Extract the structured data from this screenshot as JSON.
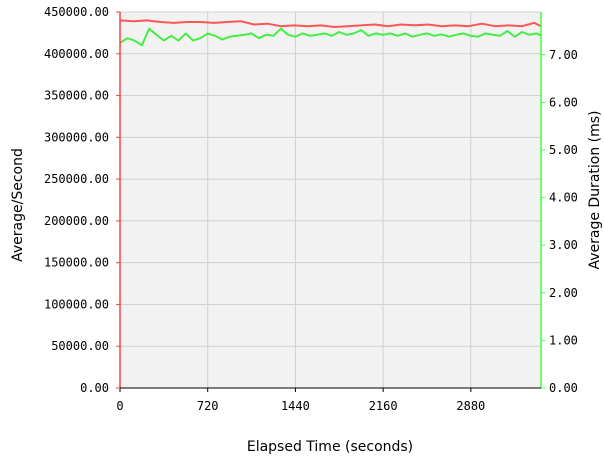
{
  "chart_data": {
    "type": "line",
    "xlabel": "Elapsed Time (seconds)",
    "ylabel_left": "Average/Second",
    "ylabel_right": "Average Duration (ms)",
    "xlim": [
      0,
      3456
    ],
    "ylim_left": [
      0,
      450000
    ],
    "ylim_right": [
      0,
      7.9
    ],
    "x_ticks": [
      0,
      720,
      1440,
      2160,
      2880
    ],
    "x_tick_labels": [
      "0",
      "720",
      "1440",
      "2160",
      "2880"
    ],
    "y_left_ticks": [
      0,
      50000,
      100000,
      150000,
      200000,
      250000,
      300000,
      350000,
      400000,
      450000
    ],
    "y_left_tick_labels": [
      "0.00",
      "50000.00",
      "100000.00",
      "150000.00",
      "200000.00",
      "250000.00",
      "300000.00",
      "350000.00",
      "400000.00",
      "450000.00"
    ],
    "y_right_ticks": [
      0,
      1,
      2,
      3,
      4,
      5,
      6,
      7
    ],
    "y_right_tick_labels": [
      "0.00",
      "1.00",
      "2.00",
      "3.00",
      "4.00",
      "5.00",
      "6.00",
      "7.00"
    ],
    "grid": true,
    "colors": {
      "plot_background": "#f2f2f2",
      "grid": "#d0d0d0",
      "left_axis": "#ff4040",
      "right_axis": "#40ff40",
      "average_per_second": "#ff5555",
      "average_duration": "#44ee44"
    },
    "series": [
      {
        "axis": "left",
        "color_key": "average_per_second",
        "x": [
          0,
          110,
          220,
          330,
          440,
          550,
          660,
          770,
          880,
          990,
          1100,
          1210,
          1320,
          1430,
          1540,
          1650,
          1760,
          1870,
          1980,
          2090,
          2200,
          2310,
          2420,
          2530,
          2640,
          2750,
          2860,
          2970,
          3080,
          3190,
          3300,
          3400,
          3456
        ],
        "y": [
          440000,
          439000,
          440000,
          438000,
          437000,
          438000,
          438000,
          437000,
          438000,
          439000,
          435000,
          436000,
          433000,
          434000,
          433000,
          434000,
          432000,
          433000,
          434000,
          435000,
          433000,
          435000,
          434000,
          435000,
          433000,
          434000,
          433000,
          436000,
          433000,
          434000,
          433000,
          437000,
          433000
        ]
      },
      {
        "axis": "right",
        "color_key": "average_duration",
        "x": [
          0,
          60,
          120,
          180,
          240,
          300,
          360,
          420,
          480,
          540,
          600,
          660,
          720,
          780,
          840,
          900,
          960,
          1020,
          1080,
          1140,
          1200,
          1260,
          1320,
          1380,
          1440,
          1500,
          1560,
          1620,
          1680,
          1740,
          1800,
          1860,
          1920,
          1980,
          2040,
          2100,
          2160,
          2220,
          2280,
          2340,
          2400,
          2460,
          2520,
          2580,
          2640,
          2700,
          2760,
          2820,
          2880,
          2940,
          3000,
          3060,
          3120,
          3180,
          3240,
          3300,
          3360,
          3420,
          3456
        ],
        "y": [
          7.25,
          7.35,
          7.3,
          7.2,
          7.55,
          7.42,
          7.3,
          7.4,
          7.3,
          7.45,
          7.3,
          7.35,
          7.45,
          7.4,
          7.32,
          7.38,
          7.4,
          7.42,
          7.45,
          7.35,
          7.42,
          7.4,
          7.55,
          7.42,
          7.38,
          7.45,
          7.4,
          7.42,
          7.45,
          7.4,
          7.48,
          7.42,
          7.45,
          7.52,
          7.4,
          7.45,
          7.42,
          7.45,
          7.4,
          7.45,
          7.38,
          7.42,
          7.45,
          7.4,
          7.43,
          7.38,
          7.42,
          7.45,
          7.4,
          7.38,
          7.45,
          7.42,
          7.4,
          7.5,
          7.38,
          7.48,
          7.42,
          7.45,
          7.4
        ]
      }
    ]
  }
}
